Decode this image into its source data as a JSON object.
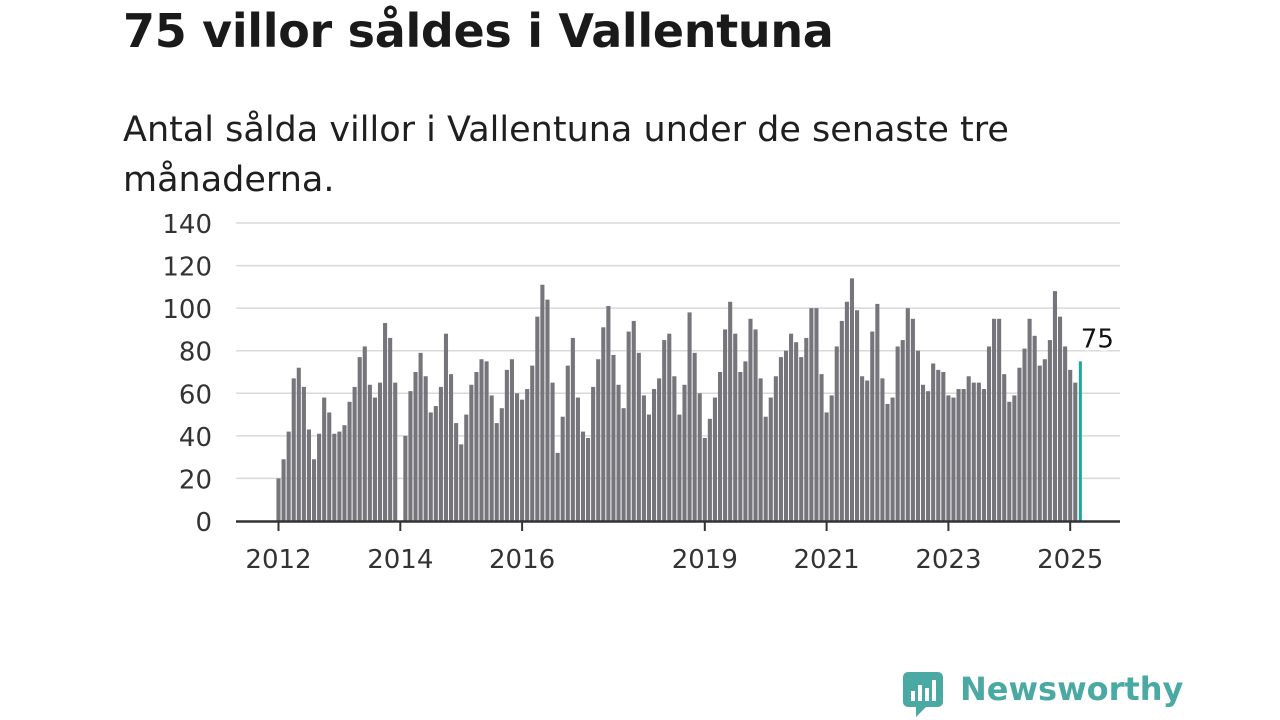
{
  "header": {
    "title": "75 villor såldes i Vallentuna",
    "subtitle": "Antal sålda villor i Vallentuna under de senaste tre månaderna."
  },
  "logo": {
    "text": "Newsworthy",
    "icon": "newsworthy-chart-icon"
  },
  "colors": {
    "bar": "#76757c",
    "highlight": "#1aa89b",
    "grid": "#d9d9d9",
    "axis": "#333333",
    "brand": "#4aa9a2"
  },
  "chart_data": {
    "type": "bar",
    "title": "75 villor såldes i Vallentuna",
    "subtitle": "Antal sålda villor i Vallentuna under de senaste tre månaderna.",
    "ylim": [
      0,
      140
    ],
    "yticks": [
      0,
      20,
      40,
      60,
      80,
      100,
      120,
      140
    ],
    "xticks": [
      "2012",
      "2014",
      "2016",
      "2019",
      "2021",
      "2023",
      "2025"
    ],
    "grid": true,
    "start": "2012-01",
    "frequency": "monthly",
    "highlight_label": "75",
    "values": [
      20,
      29,
      42,
      67,
      72,
      63,
      43,
      29,
      41,
      58,
      51,
      41,
      42,
      45,
      56,
      63,
      77,
      82,
      64,
      58,
      65,
      93,
      86,
      65,
      0,
      40,
      61,
      70,
      79,
      68,
      51,
      54,
      63,
      88,
      69,
      46,
      36,
      50,
      64,
      70,
      76,
      75,
      59,
      46,
      53,
      71,
      76,
      60,
      57,
      62,
      73,
      96,
      111,
      104,
      65,
      32,
      49,
      73,
      86,
      58,
      42,
      39,
      63,
      76,
      91,
      101,
      78,
      64,
      53,
      89,
      94,
      79,
      59,
      50,
      62,
      67,
      85,
      88,
      68,
      50,
      64,
      98,
      79,
      60,
      39,
      48,
      58,
      70,
      90,
      103,
      88,
      70,
      75,
      95,
      90,
      67,
      49,
      58,
      68,
      77,
      80,
      88,
      84,
      77,
      86,
      100,
      100,
      69,
      51,
      59,
      82,
      94,
      103,
      114,
      99,
      68,
      66,
      89,
      102,
      67,
      55,
      58,
      82,
      85,
      100,
      95,
      80,
      64,
      61,
      74,
      71,
      70,
      59,
      58,
      62,
      62,
      68,
      65,
      65,
      62,
      82,
      95,
      95,
      69,
      56,
      59,
      72,
      81,
      95,
      87,
      73,
      76,
      85,
      108,
      96,
      82,
      71,
      65,
      75
    ]
  }
}
